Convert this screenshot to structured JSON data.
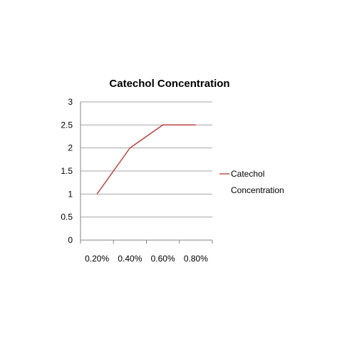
{
  "chart_data": {
    "type": "line",
    "title": "Catechol Concentration",
    "xlabel": "",
    "ylabel": "",
    "categories": [
      "0.20%",
      "0.40%",
      "0.60%",
      "0.80%"
    ],
    "series": [
      {
        "name": "Catechol Concentration",
        "values": [
          1,
          2,
          2.5,
          2.5
        ],
        "color": "#c0504d"
      }
    ],
    "ylim": [
      0,
      3
    ],
    "yticks": [
      "0",
      "0.5",
      "1",
      "1.5",
      "2",
      "2.5",
      "3"
    ],
    "grid": true,
    "legend": "right",
    "legend_lines": [
      "Catechol",
      "Concentration"
    ]
  }
}
